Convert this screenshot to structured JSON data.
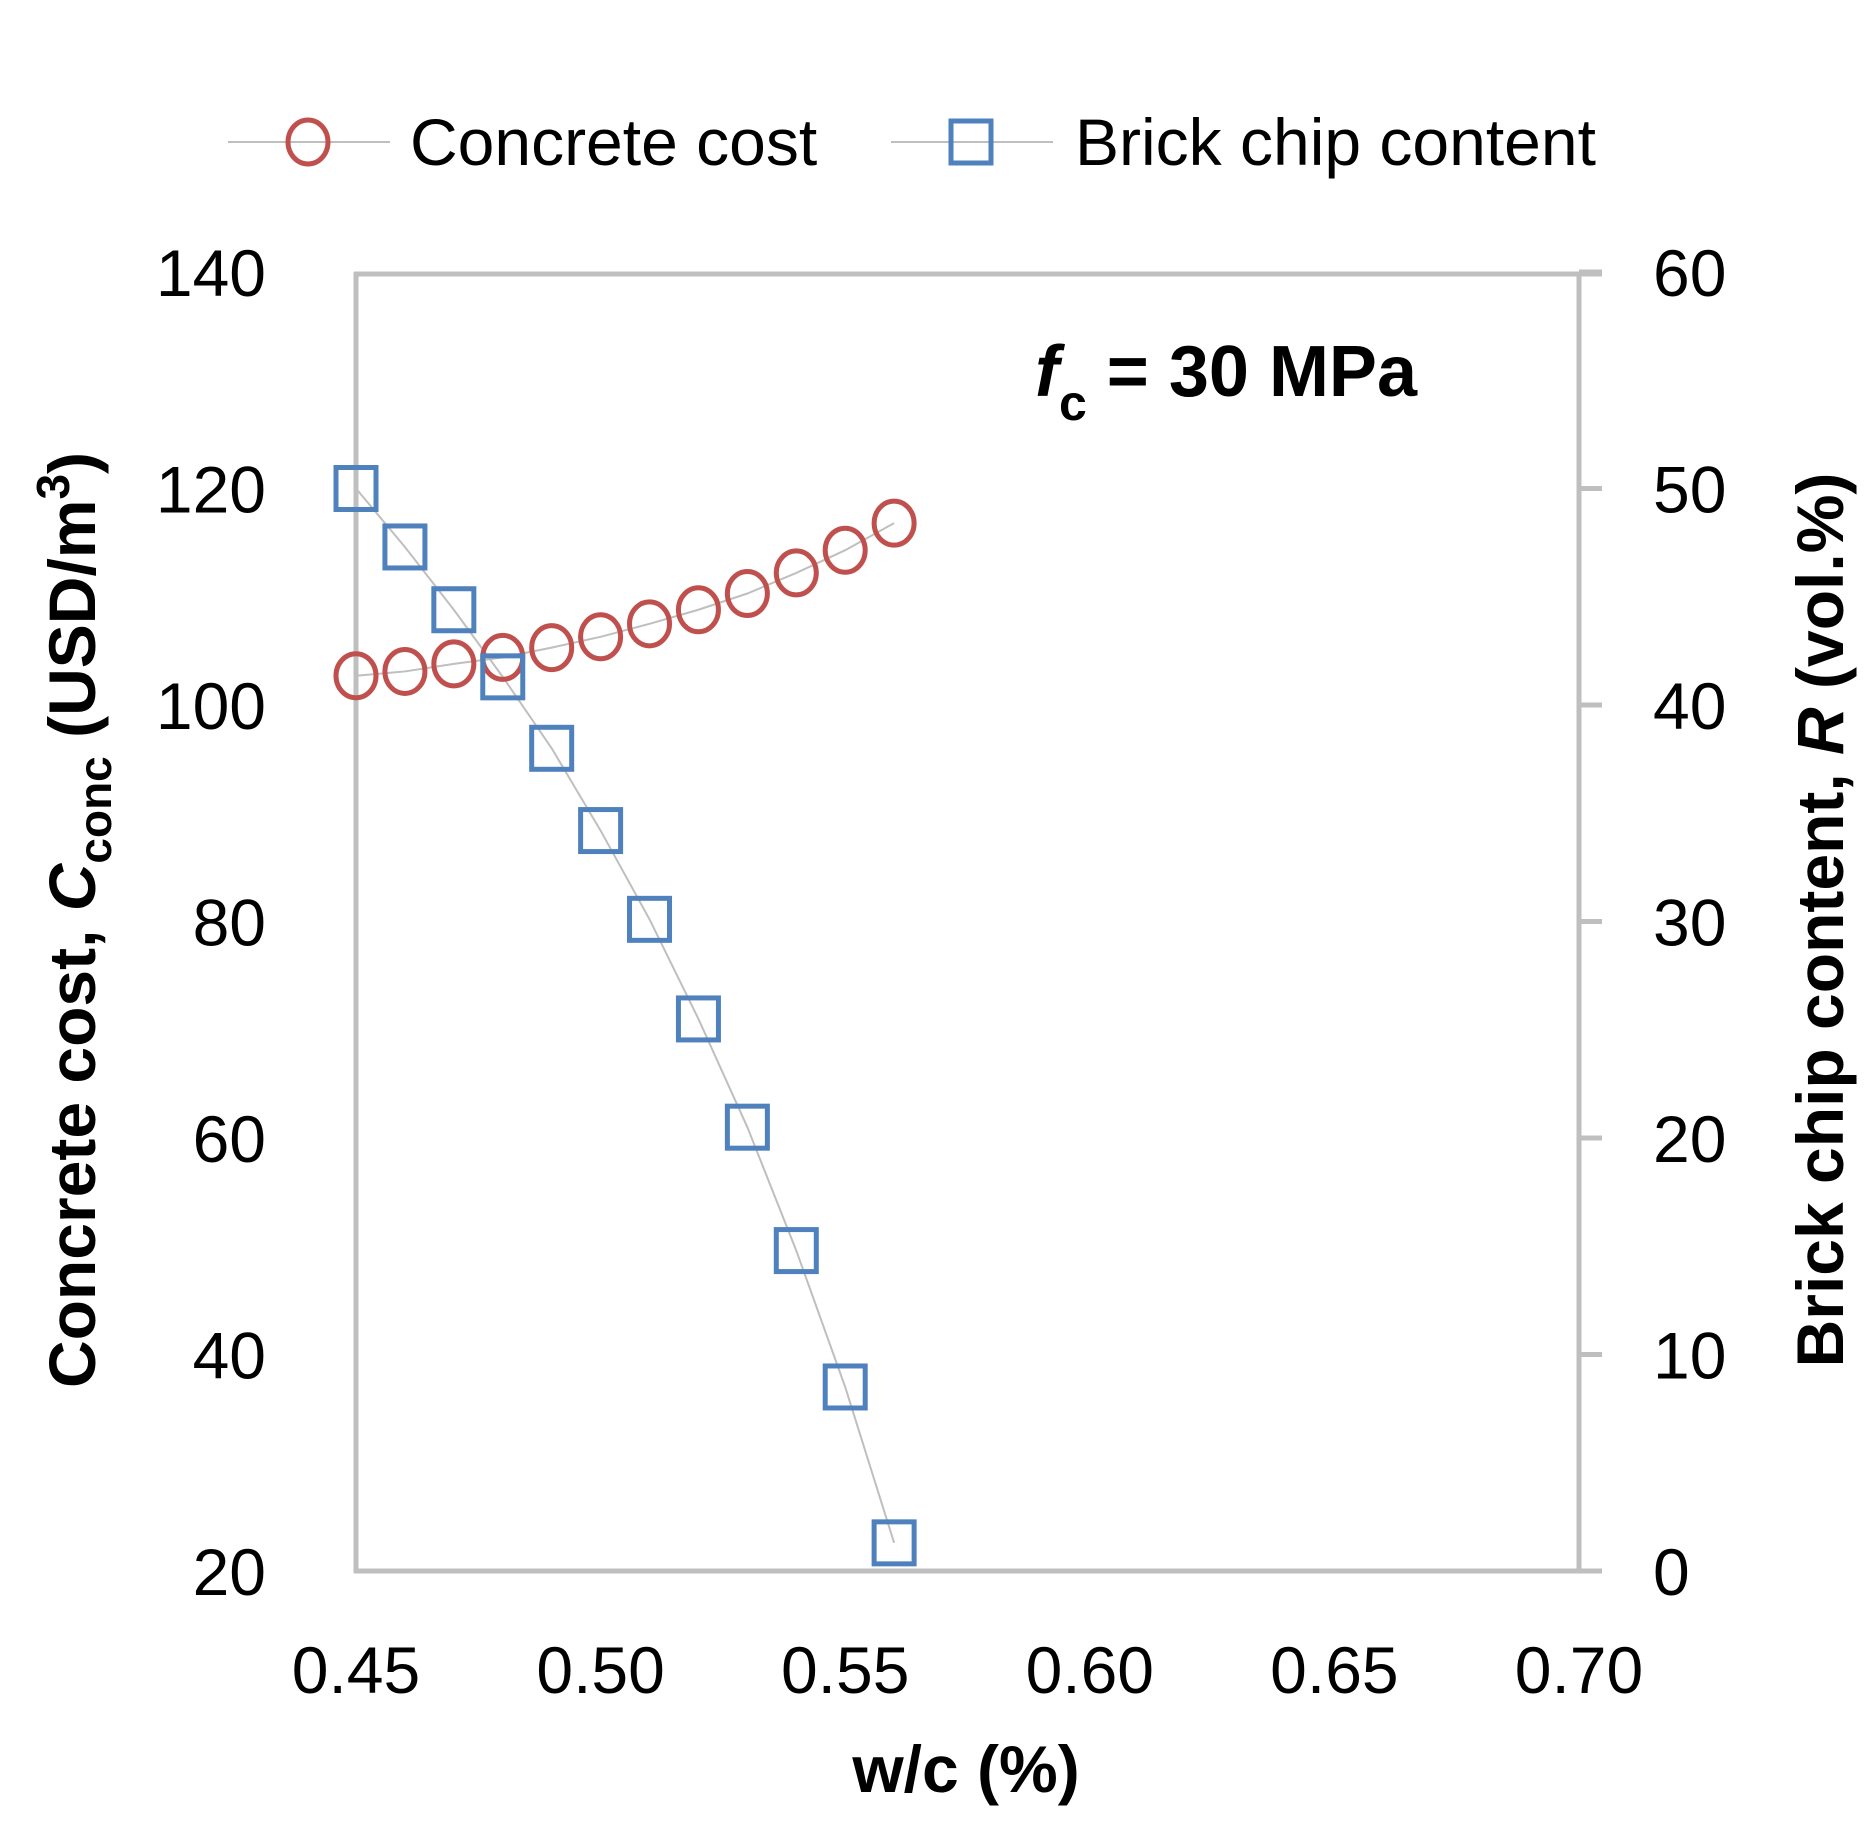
{
  "chart_data": {
    "type": "line",
    "title": "",
    "annotation": {
      "symbol": "f",
      "subscript": "c",
      "text": " = 30 MPa"
    },
    "xlabel": "w/c (%)",
    "ylabel_left": {
      "prefix": "Concrete cost, ",
      "symbol": "C",
      "subscript": "conc",
      "suffix": " (USD/m",
      "superscript": "3",
      "close": ")"
    },
    "ylabel_right": {
      "prefix": "Brick chip content, ",
      "symbol": "R",
      "suffix": " (vol.%)"
    },
    "xlim": [
      0.45,
      0.7
    ],
    "ylim_left": [
      20,
      140
    ],
    "ylim_right": [
      0,
      60
    ],
    "xticks": [
      "0.45",
      "0.50",
      "0.55",
      "0.60",
      "0.65",
      "0.70"
    ],
    "xtick_values": [
      0.45,
      0.5,
      0.55,
      0.6,
      0.65,
      0.7
    ],
    "yticks_left": [
      "20",
      "40",
      "60",
      "80",
      "100",
      "120",
      "140"
    ],
    "ytick_values_left": [
      20,
      40,
      60,
      80,
      100,
      120,
      140
    ],
    "yticks_right": [
      "0",
      "10",
      "20",
      "30",
      "40",
      "50",
      "60"
    ],
    "ytick_values_right": [
      0,
      10,
      20,
      30,
      40,
      50,
      60
    ],
    "grid": false,
    "legend_position": "top",
    "x": [
      0.45,
      0.46,
      0.47,
      0.48,
      0.49,
      0.5,
      0.51,
      0.52,
      0.53,
      0.54,
      0.55,
      0.56
    ],
    "series": [
      {
        "name": "Concrete cost",
        "axis": "left",
        "marker": "circle",
        "color": "#C0504D",
        "line_color": "#BFBFBF",
        "values": [
          102.7,
          103.1,
          103.8,
          104.4,
          105.3,
          106.3,
          107.5,
          108.8,
          110.3,
          112.2,
          114.3,
          116.8
        ]
      },
      {
        "name": "Brick chip content",
        "axis": "right",
        "marker": "square",
        "color": "#4F81BD",
        "line_color": "#BFBFBF",
        "values": [
          50.0,
          47.3,
          44.4,
          41.3,
          38.0,
          34.2,
          30.1,
          25.5,
          20.5,
          14.8,
          8.5,
          1.3
        ]
      }
    ]
  },
  "colors": {
    "axis": "#BFBFBF",
    "text": "#000000"
  }
}
